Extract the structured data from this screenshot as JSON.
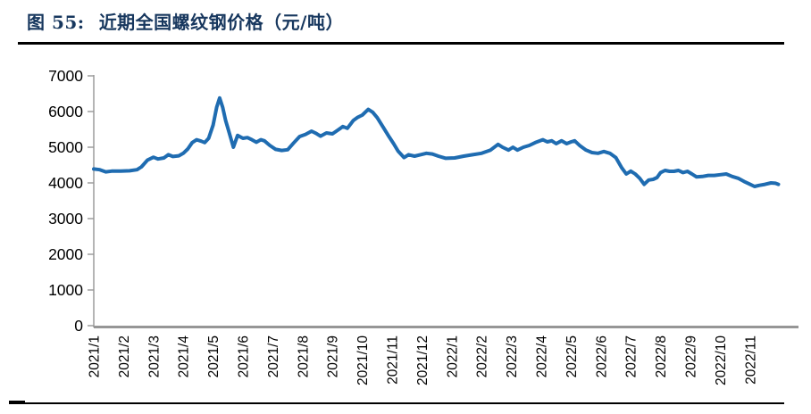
{
  "header": {
    "figure_label": "图  55:",
    "title_text": "近期全国螺纹钢价格（元/吨）",
    "title_color": "#17375E"
  },
  "chart_data": {
    "type": "line",
    "title": "近期全国螺纹钢价格（元/吨）",
    "xlabel": "",
    "ylabel": "",
    "unit": "元/吨",
    "ylim": [
      0,
      7000
    ],
    "y_ticks": [
      0,
      1000,
      2000,
      3000,
      4000,
      5000,
      6000,
      7000
    ],
    "x_tick_labels": [
      "2021/1",
      "2021/2",
      "2021/3",
      "2021/4",
      "2021/5",
      "2021/6",
      "2021/7",
      "2021/8",
      "2021/9",
      "2021/10",
      "2021/11",
      "2021/12",
      "2022/1",
      "2022/2",
      "2022/3",
      "2022/4",
      "2022/5",
      "2022/6",
      "2022/7",
      "2022/8",
      "2022/9",
      "2022/10",
      "2022/11"
    ],
    "x_unit": "months_since_2021_01",
    "grid": false,
    "legend_position": "none",
    "line_color": "#1F6CB1",
    "axis_color": "#969696",
    "tick_label_color": "#000000",
    "series": [
      {
        "name": "全国螺纹钢价格",
        "points": [
          [
            0,
            4390
          ],
          [
            0.2,
            4370
          ],
          [
            0.4,
            4310
          ],
          [
            0.6,
            4330
          ],
          [
            0.9,
            4330
          ],
          [
            1.2,
            4340
          ],
          [
            1.45,
            4370
          ],
          [
            1.6,
            4450
          ],
          [
            1.8,
            4640
          ],
          [
            2.0,
            4720
          ],
          [
            2.15,
            4670
          ],
          [
            2.35,
            4700
          ],
          [
            2.5,
            4790
          ],
          [
            2.65,
            4740
          ],
          [
            2.85,
            4760
          ],
          [
            3.0,
            4830
          ],
          [
            3.15,
            4950
          ],
          [
            3.3,
            5130
          ],
          [
            3.45,
            5210
          ],
          [
            3.6,
            5170
          ],
          [
            3.72,
            5130
          ],
          [
            3.85,
            5250
          ],
          [
            4.0,
            5620
          ],
          [
            4.12,
            6120
          ],
          [
            4.22,
            6380
          ],
          [
            4.32,
            6120
          ],
          [
            4.42,
            5750
          ],
          [
            4.52,
            5460
          ],
          [
            4.68,
            5000
          ],
          [
            4.82,
            5330
          ],
          [
            5.0,
            5250
          ],
          [
            5.15,
            5270
          ],
          [
            5.3,
            5210
          ],
          [
            5.45,
            5140
          ],
          [
            5.6,
            5210
          ],
          [
            5.72,
            5180
          ],
          [
            5.9,
            5050
          ],
          [
            6.1,
            4940
          ],
          [
            6.3,
            4910
          ],
          [
            6.5,
            4930
          ],
          [
            6.7,
            5120
          ],
          [
            6.9,
            5300
          ],
          [
            7.1,
            5360
          ],
          [
            7.3,
            5450
          ],
          [
            7.45,
            5390
          ],
          [
            7.6,
            5310
          ],
          [
            7.8,
            5400
          ],
          [
            8.0,
            5375
          ],
          [
            8.2,
            5490
          ],
          [
            8.35,
            5580
          ],
          [
            8.5,
            5530
          ],
          [
            8.7,
            5750
          ],
          [
            8.85,
            5840
          ],
          [
            9.0,
            5900
          ],
          [
            9.2,
            6060
          ],
          [
            9.35,
            5980
          ],
          [
            9.5,
            5830
          ],
          [
            9.7,
            5560
          ],
          [
            9.9,
            5290
          ],
          [
            10.05,
            5100
          ],
          [
            10.2,
            4890
          ],
          [
            10.4,
            4710
          ],
          [
            10.55,
            4790
          ],
          [
            10.75,
            4750
          ],
          [
            10.95,
            4790
          ],
          [
            11.15,
            4830
          ],
          [
            11.35,
            4810
          ],
          [
            11.55,
            4750
          ],
          [
            11.8,
            4690
          ],
          [
            12.1,
            4700
          ],
          [
            12.4,
            4750
          ],
          [
            12.7,
            4790
          ],
          [
            13.0,
            4830
          ],
          [
            13.3,
            4920
          ],
          [
            13.55,
            5080
          ],
          [
            13.7,
            5000
          ],
          [
            13.9,
            4920
          ],
          [
            14.05,
            5000
          ],
          [
            14.2,
            4920
          ],
          [
            14.4,
            5000
          ],
          [
            14.6,
            5050
          ],
          [
            14.8,
            5130
          ],
          [
            15.05,
            5210
          ],
          [
            15.2,
            5150
          ],
          [
            15.35,
            5180
          ],
          [
            15.5,
            5100
          ],
          [
            15.68,
            5180
          ],
          [
            15.85,
            5100
          ],
          [
            16.0,
            5150
          ],
          [
            16.12,
            5180
          ],
          [
            16.3,
            5040
          ],
          [
            16.5,
            4920
          ],
          [
            16.7,
            4850
          ],
          [
            16.9,
            4830
          ],
          [
            17.1,
            4880
          ],
          [
            17.3,
            4830
          ],
          [
            17.5,
            4710
          ],
          [
            17.7,
            4420
          ],
          [
            17.85,
            4250
          ],
          [
            18.0,
            4330
          ],
          [
            18.15,
            4250
          ],
          [
            18.3,
            4130
          ],
          [
            18.45,
            3960
          ],
          [
            18.6,
            4080
          ],
          [
            18.75,
            4100
          ],
          [
            18.88,
            4150
          ],
          [
            19.0,
            4290
          ],
          [
            19.15,
            4350
          ],
          [
            19.3,
            4325
          ],
          [
            19.45,
            4325
          ],
          [
            19.6,
            4350
          ],
          [
            19.75,
            4290
          ],
          [
            19.9,
            4325
          ],
          [
            20.05,
            4250
          ],
          [
            20.2,
            4170
          ],
          [
            20.4,
            4180
          ],
          [
            20.6,
            4210
          ],
          [
            20.8,
            4210
          ],
          [
            21.0,
            4230
          ],
          [
            21.2,
            4250
          ],
          [
            21.4,
            4180
          ],
          [
            21.6,
            4130
          ],
          [
            21.8,
            4040
          ],
          [
            22.0,
            3960
          ],
          [
            22.15,
            3900
          ],
          [
            22.3,
            3930
          ],
          [
            22.5,
            3960
          ],
          [
            22.7,
            4000
          ],
          [
            22.85,
            3990
          ],
          [
            22.95,
            3960
          ]
        ]
      }
    ]
  }
}
